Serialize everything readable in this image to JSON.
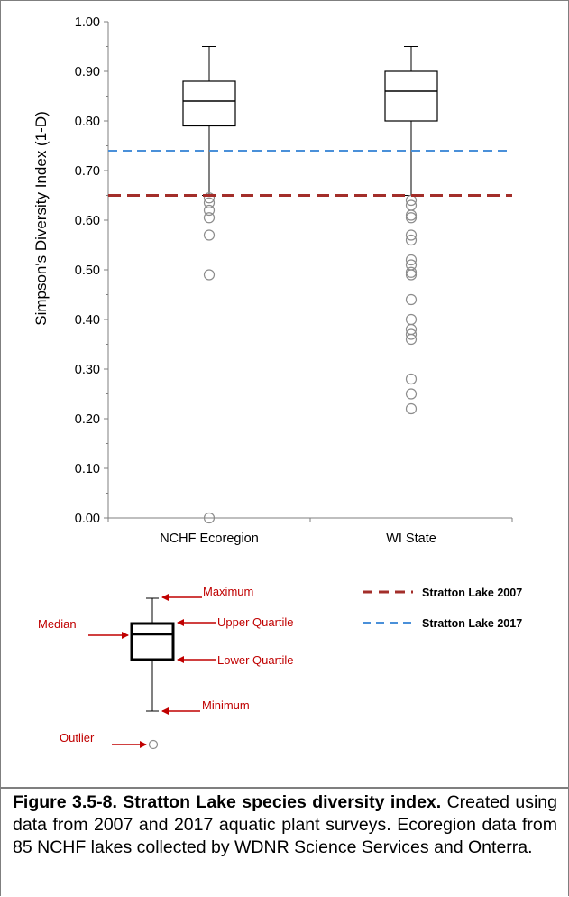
{
  "chart_data": {
    "type": "box",
    "ylabel": "Simpson's Diversity Index (1-D)",
    "ylim": [
      0,
      1
    ],
    "ytick_labels": [
      "0.00",
      "0.10",
      "0.20",
      "0.30",
      "0.40",
      "0.50",
      "0.60",
      "0.70",
      "0.80",
      "0.90",
      "1.00"
    ],
    "categories": [
      "NCHF Ecoregion",
      "WI State"
    ],
    "boxes": [
      {
        "name": "NCHF Ecoregion",
        "min": 0.65,
        "q1": 0.79,
        "median": 0.84,
        "q3": 0.88,
        "max": 0.95,
        "outliers": [
          0.645,
          0.635,
          0.62,
          0.605,
          0.57,
          0.49,
          0.0
        ]
      },
      {
        "name": "WI State",
        "min": 0.65,
        "q1": 0.8,
        "median": 0.86,
        "q3": 0.9,
        "max": 0.95,
        "outliers": [
          0.64,
          0.63,
          0.61,
          0.605,
          0.57,
          0.56,
          0.52,
          0.51,
          0.495,
          0.49,
          0.44,
          0.4,
          0.38,
          0.37,
          0.36,
          0.28,
          0.25,
          0.22
        ]
      }
    ],
    "reference_lines": [
      {
        "name": "Stratton Lake 2007",
        "value": 0.65,
        "color": "#a32e2a"
      },
      {
        "name": "Stratton Lake 2017",
        "value": 0.74,
        "color": "#4a90d9"
      }
    ]
  },
  "key": {
    "maximum": "Maximum",
    "upper_quartile": "Upper Quartile",
    "median": "Median",
    "lower_quartile": "Lower Quartile",
    "minimum": "Minimum",
    "outlier": "Outlier"
  },
  "legend": {
    "item_2007": "Stratton Lake 2007",
    "item_2017": "Stratton Lake 2017"
  },
  "caption": {
    "title": "Figure 3.5-8.  Stratton Lake species diversity index.",
    "body": "  Created using data from 2007 and 2017 aquatic plant surveys.  Ecoregion data from 85 NCHF lakes collected by WDNR Science Services and Onterra."
  }
}
